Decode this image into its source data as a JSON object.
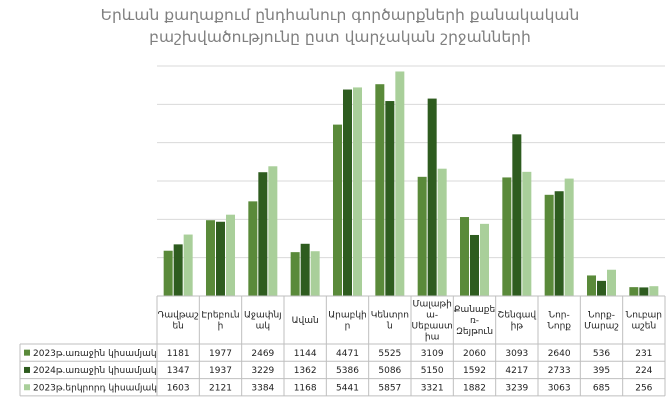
{
  "title_lines": [
    "Երևան քաղաքում ընդհանուր գործարքների քանակական",
    "բաշխվածությունը ըստ վարչական շրջանների"
  ],
  "colors": [
    "#5a8a3a",
    "#2e5c1f",
    "#a9cf9a"
  ],
  "chart_data": {
    "type": "bar",
    "title": "Երևան քաղաքում ընդհանուր գործարքների քանակական բաշխվածությունը ըստ վարչական շրջանների",
    "categories": [
      [
        "Դավթաշ",
        "են"
      ],
      [
        "Էրեբուն",
        "ի"
      ],
      [
        "Աջափնյ",
        "ակ"
      ],
      [
        "Ավան"
      ],
      [
        "Արաբկի",
        "ր"
      ],
      [
        "Կենտրո",
        "ն"
      ],
      [
        "Մալաթի",
        "ա-",
        "Սեբաստ",
        "իա"
      ],
      [
        "Քանաքե",
        "ռ-",
        "Զեյթուն"
      ],
      [
        "Շենգավ",
        "իթ"
      ],
      [
        "Նոր-",
        "Նորք"
      ],
      [
        "Նորք-",
        "Մարաշ"
      ],
      [
        "Նուբար",
        "աշեն"
      ]
    ],
    "series": [
      {
        "name": "2023թ.առաջին կիսամյակ",
        "values": [
          1181,
          1977,
          2469,
          1144,
          4471,
          5525,
          3109,
          2060,
          3093,
          2640,
          536,
          231
        ]
      },
      {
        "name": "2024թ.առաջին կիսամյակ",
        "values": [
          1347,
          1937,
          3229,
          1362,
          5386,
          5086,
          5150,
          1592,
          4217,
          2733,
          395,
          224
        ]
      },
      {
        "name": "2023թ.երկրորդ կիսամյակ",
        "values": [
          1603,
          2121,
          3384,
          1168,
          5441,
          5857,
          3321,
          1882,
          3239,
          3063,
          685,
          256
        ]
      }
    ],
    "ylim": [
      0,
      6000
    ],
    "grid": true,
    "legend": "data-table"
  }
}
